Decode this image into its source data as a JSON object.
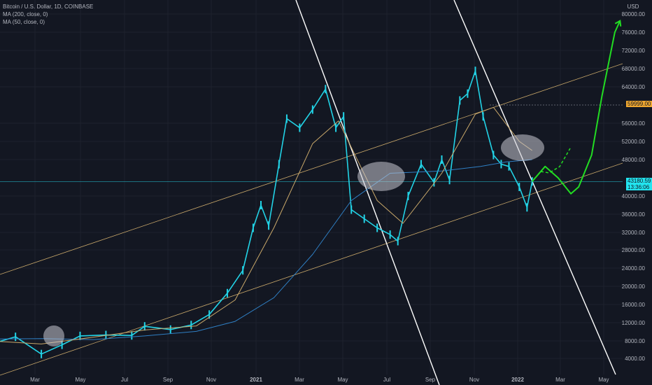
{
  "header": {
    "symbol": "Bitcoin / U.S. Dollar, 1D, COINBASE",
    "ma200": "MA (200, close, 0)",
    "ma50": "MA (50, close, 0)",
    "currency": "USD"
  },
  "tags": {
    "level": "59999.00",
    "last_price": "43180.59",
    "countdown": "13:36:06"
  },
  "colors": {
    "background": "#131722",
    "candles": "#22d3e6",
    "ma200": "#2f7fc4",
    "ma50": "#c9a86a",
    "channel": "#c9a86a",
    "trendlines": "#ffffff",
    "projection": "#22dd22",
    "level_tag": "#f0a830",
    "last_tag": "#22e5f0"
  },
  "chart_data": {
    "type": "line",
    "title": "Bitcoin / U.S. Dollar, 1D, COINBASE",
    "x_tick_labels": [
      "Mar",
      "May",
      "Jul",
      "Sep",
      "Nov",
      "2021",
      "Mar",
      "May",
      "Jul",
      "Sep",
      "Nov",
      "2022",
      "Mar",
      "May"
    ],
    "y_tick_labels": [
      "80000.00",
      "76000.00",
      "72000.00",
      "68000.00",
      "64000.00",
      "56000.00",
      "52000.00",
      "48000.00",
      "40000.00",
      "36000.00",
      "32000.00",
      "28000.00",
      "24000.00",
      "20000.00",
      "16000.00",
      "12000.00",
      "8000.00",
      "4000.00"
    ],
    "ylim": [
      4000,
      80000
    ],
    "xlim": [
      2020.04,
      2022.45
    ],
    "series": [
      {
        "name": "BTCUSD",
        "points": [
          [
            2020.0,
            7200
          ],
          [
            2020.1,
            8900
          ],
          [
            2020.2,
            5000
          ],
          [
            2020.28,
            7100
          ],
          [
            2020.35,
            9100
          ],
          [
            2020.45,
            9300
          ],
          [
            2020.55,
            9200
          ],
          [
            2020.6,
            11200
          ],
          [
            2020.7,
            10500
          ],
          [
            2020.78,
            11500
          ],
          [
            2020.85,
            13800
          ],
          [
            2020.92,
            18500
          ],
          [
            2020.98,
            23500
          ],
          [
            2021.02,
            33000
          ],
          [
            2021.05,
            38000
          ],
          [
            2021.08,
            33500
          ],
          [
            2021.12,
            47000
          ],
          [
            2021.15,
            57000
          ],
          [
            2021.2,
            55000
          ],
          [
            2021.25,
            59000
          ],
          [
            2021.3,
            63500
          ],
          [
            2021.34,
            55000
          ],
          [
            2021.37,
            57500
          ],
          [
            2021.4,
            37000
          ],
          [
            2021.45,
            35000
          ],
          [
            2021.5,
            33000
          ],
          [
            2021.55,
            31500
          ],
          [
            2021.58,
            30000
          ],
          [
            2021.62,
            40000
          ],
          [
            2021.67,
            47000
          ],
          [
            2021.72,
            43000
          ],
          [
            2021.75,
            48000
          ],
          [
            2021.78,
            43500
          ],
          [
            2021.82,
            61000
          ],
          [
            2021.85,
            62500
          ],
          [
            2021.88,
            67500
          ],
          [
            2021.91,
            57500
          ],
          [
            2021.95,
            49000
          ],
          [
            2021.98,
            47000
          ],
          [
            2022.01,
            46500
          ],
          [
            2022.05,
            42000
          ],
          [
            2022.08,
            37500
          ],
          [
            2022.1,
            43200
          ]
        ]
      },
      {
        "name": "MA (200, close, 0)",
        "points": [
          [
            2020.0,
            8400
          ],
          [
            2020.2,
            8500
          ],
          [
            2020.4,
            8300
          ],
          [
            2020.6,
            9100
          ],
          [
            2020.8,
            10100
          ],
          [
            2020.95,
            12300
          ],
          [
            2021.1,
            17500
          ],
          [
            2021.25,
            27000
          ],
          [
            2021.4,
            39000
          ],
          [
            2021.55,
            45000
          ],
          [
            2021.75,
            45500
          ],
          [
            2021.9,
            46500
          ],
          [
            2022.0,
            47500
          ],
          [
            2022.1,
            48000
          ]
        ]
      },
      {
        "name": "MA (50, close, 0)",
        "points": [
          [
            2020.0,
            8000
          ],
          [
            2020.2,
            7300
          ],
          [
            2020.4,
            8800
          ],
          [
            2020.6,
            10400
          ],
          [
            2020.8,
            11300
          ],
          [
            2020.95,
            17000
          ],
          [
            2021.1,
            33000
          ],
          [
            2021.25,
            51500
          ],
          [
            2021.35,
            56500
          ],
          [
            2021.5,
            39000
          ],
          [
            2021.6,
            34000
          ],
          [
            2021.75,
            45000
          ],
          [
            2021.88,
            58000
          ],
          [
            2021.95,
            59500
          ],
          [
            2022.05,
            52000
          ],
          [
            2022.1,
            50000
          ]
        ]
      },
      {
        "name": "Projection",
        "points": [
          [
            2022.1,
            43200
          ],
          [
            2022.15,
            46500
          ],
          [
            2022.2,
            44000
          ],
          [
            2022.25,
            40500
          ],
          [
            2022.28,
            42000
          ],
          [
            2022.33,
            49000
          ],
          [
            2022.37,
            62000
          ],
          [
            2022.42,
            76000
          ],
          [
            2022.44,
            78500
          ]
        ]
      }
    ],
    "horizontal_levels": [
      59999.0,
      43180.59
    ]
  }
}
